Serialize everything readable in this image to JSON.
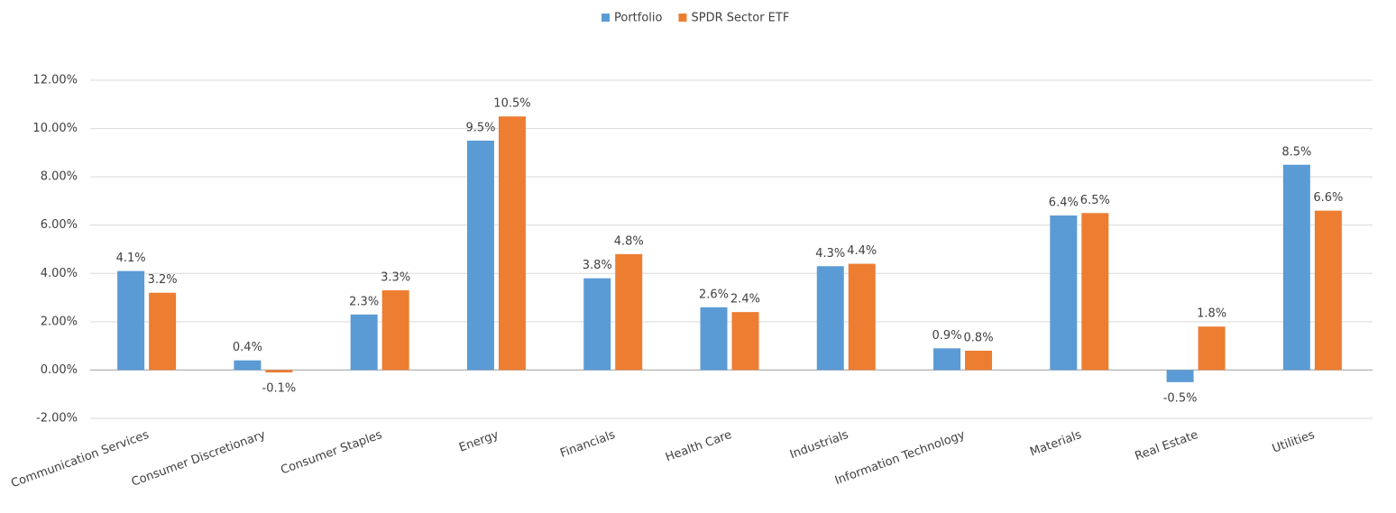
{
  "chart_data": {
    "type": "bar",
    "categories": [
      "Communication Services",
      "Consumer Discretionary",
      "Consumer Staples",
      "Energy",
      "Financials",
      "Health Care",
      "Industrials",
      "Information Technology",
      "Materials",
      "Real Estate",
      "Utilities"
    ],
    "series": [
      {
        "name": "Portfolio",
        "color": "#5b9bd5",
        "values": [
          4.1,
          0.4,
          2.3,
          9.5,
          3.8,
          2.6,
          4.3,
          0.9,
          6.4,
          -0.5,
          8.5
        ],
        "value_labels": [
          "4.1%",
          "0.4%",
          "2.3%",
          "9.5%",
          "3.8%",
          "2.6%",
          "4.3%",
          "0.9%",
          "6.4%",
          "-0.5%",
          "8.5%"
        ]
      },
      {
        "name": "SPDR Sector ETF",
        "color": "#ed7d31",
        "values": [
          3.2,
          -0.1,
          3.3,
          10.5,
          4.8,
          2.4,
          4.4,
          0.8,
          6.5,
          1.8,
          6.6
        ],
        "value_labels": [
          "3.2%",
          "-0.1%",
          "3.3%",
          "10.5%",
          "4.8%",
          "2.4%",
          "4.4%",
          "0.8%",
          "6.5%",
          "1.8%",
          "6.6%"
        ]
      }
    ],
    "ylim": [
      -2,
      12
    ],
    "yticks": [
      {
        "value": -2,
        "label": "-2.00%"
      },
      {
        "value": 0,
        "label": "0.00%"
      },
      {
        "value": 2,
        "label": "2.00%"
      },
      {
        "value": 4,
        "label": "4.00%"
      },
      {
        "value": 6,
        "label": "6.00%"
      },
      {
        "value": 8,
        "label": "8.00%"
      },
      {
        "value": 10,
        "label": "10.00%"
      },
      {
        "value": 12,
        "label": "12.00%"
      }
    ],
    "grid": true,
    "legend": "top"
  }
}
